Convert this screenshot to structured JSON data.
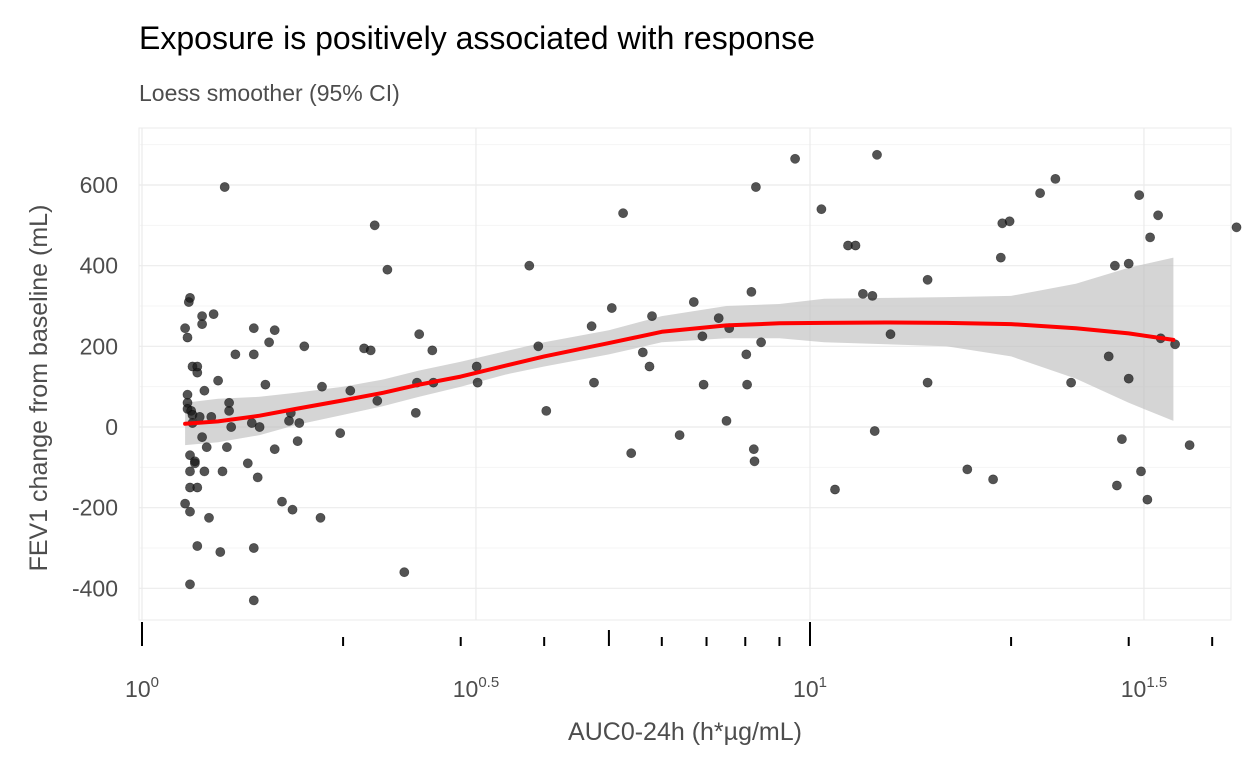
{
  "chart_data": {
    "type": "scatter",
    "title": "Exposure is positively associated with response",
    "subtitle": "Loess smoother (95% CI)",
    "xlabel": "AUC0-24h (h*µg/mL)",
    "ylabel": "FEV1 change from baseline (mL)",
    "x_scale": "log10",
    "xlim": [
      1.0,
      40.0
    ],
    "ylim": [
      -500,
      700
    ],
    "x_ticks": [
      {
        "base": "10",
        "exp": "0",
        "value": 1.0
      },
      {
        "base": "10",
        "exp": "0.5",
        "value": 3.162
      },
      {
        "base": "10",
        "exp": "1",
        "value": 10.0
      },
      {
        "base": "10",
        "exp": "1.5",
        "value": 31.62
      }
    ],
    "y_ticks": [
      -400,
      -200,
      0,
      200,
      400,
      600
    ],
    "grid": true,
    "colors": {
      "points": "#1a1a1a",
      "smoother": "#ff0000",
      "ribbon": "#bebebe",
      "grid": "#ebebeb",
      "text": "#4d4d4d"
    },
    "smoother": {
      "x": [
        1.16,
        1.3,
        1.5,
        1.7,
        2.0,
        2.3,
        2.6,
        3.0,
        3.5,
        4.0,
        5.0,
        6.0,
        7.5,
        9.0,
        10.5,
        13.0,
        16.0,
        20.0,
        25.0,
        30.0,
        35.0
      ],
      "y": [
        8,
        14,
        28,
        45,
        66,
        85,
        105,
        125,
        152,
        175,
        208,
        236,
        252,
        257,
        258,
        259,
        258,
        255,
        245,
        232,
        216
      ],
      "lower": [
        -45,
        -38,
        -20,
        5,
        30,
        52,
        75,
        100,
        130,
        150,
        180,
        210,
        220,
        220,
        210,
        205,
        200,
        175,
        120,
        60,
        15
      ],
      "upper": [
        60,
        70,
        75,
        85,
        100,
        118,
        140,
        162,
        188,
        210,
        240,
        275,
        300,
        305,
        318,
        320,
        322,
        325,
        355,
        395,
        420
      ]
    },
    "points": [
      [
        1.16,
        -190
      ],
      [
        1.16,
        245
      ],
      [
        1.17,
        222
      ],
      [
        1.17,
        60
      ],
      [
        1.17,
        80
      ],
      [
        1.17,
        45
      ],
      [
        1.175,
        310
      ],
      [
        1.18,
        320
      ],
      [
        1.18,
        -70
      ],
      [
        1.18,
        -110
      ],
      [
        1.18,
        -150
      ],
      [
        1.18,
        -210
      ],
      [
        1.18,
        -390
      ],
      [
        1.185,
        40
      ],
      [
        1.19,
        30
      ],
      [
        1.19,
        10
      ],
      [
        1.19,
        150
      ],
      [
        1.2,
        -85
      ],
      [
        1.2,
        -90
      ],
      [
        1.21,
        -295
      ],
      [
        1.21,
        135
      ],
      [
        1.21,
        150
      ],
      [
        1.21,
        -150
      ],
      [
        1.22,
        25
      ],
      [
        1.23,
        -25
      ],
      [
        1.23,
        275
      ],
      [
        1.23,
        255
      ],
      [
        1.24,
        -110
      ],
      [
        1.24,
        90
      ],
      [
        1.25,
        -50
      ],
      [
        1.26,
        -225
      ],
      [
        1.27,
        25
      ],
      [
        1.28,
        280
      ],
      [
        1.3,
        115
      ],
      [
        1.31,
        -310
      ],
      [
        1.32,
        -110
      ],
      [
        1.33,
        595
      ],
      [
        1.34,
        -50
      ],
      [
        1.35,
        40
      ],
      [
        1.35,
        60
      ],
      [
        1.36,
        0
      ],
      [
        1.38,
        180
      ],
      [
        1.44,
        -90
      ],
      [
        1.46,
        10
      ],
      [
        1.47,
        245
      ],
      [
        1.47,
        180
      ],
      [
        1.47,
        -300
      ],
      [
        1.47,
        -430
      ],
      [
        1.49,
        -125
      ],
      [
        1.5,
        0
      ],
      [
        1.53,
        105
      ],
      [
        1.55,
        210
      ],
      [
        1.58,
        -55
      ],
      [
        1.58,
        240
      ],
      [
        1.62,
        -185
      ],
      [
        1.66,
        15
      ],
      [
        1.67,
        35
      ],
      [
        1.68,
        -205
      ],
      [
        1.71,
        -35
      ],
      [
        1.72,
        10
      ],
      [
        1.75,
        200
      ],
      [
        1.85,
        -225
      ],
      [
        1.86,
        100
      ],
      [
        1.98,
        -15
      ],
      [
        2.05,
        90
      ],
      [
        2.15,
        195
      ],
      [
        2.2,
        190
      ],
      [
        2.23,
        500
      ],
      [
        2.25,
        65
      ],
      [
        2.33,
        390
      ],
      [
        2.47,
        -360
      ],
      [
        2.57,
        35
      ],
      [
        2.58,
        110
      ],
      [
        2.6,
        230
      ],
      [
        2.72,
        190
      ],
      [
        2.73,
        110
      ],
      [
        3.17,
        150
      ],
      [
        3.18,
        110
      ],
      [
        3.8,
        400
      ],
      [
        3.92,
        200
      ],
      [
        4.03,
        40
      ],
      [
        4.71,
        250
      ],
      [
        4.75,
        110
      ],
      [
        5.05,
        295
      ],
      [
        5.25,
        530
      ],
      [
        5.4,
        -65
      ],
      [
        5.62,
        185
      ],
      [
        5.75,
        150
      ],
      [
        5.8,
        275
      ],
      [
        6.38,
        -20
      ],
      [
        6.7,
        310
      ],
      [
        6.9,
        225
      ],
      [
        6.93,
        105
      ],
      [
        7.3,
        270
      ],
      [
        7.5,
        15
      ],
      [
        7.57,
        245
      ],
      [
        8.03,
        180
      ],
      [
        8.05,
        105
      ],
      [
        8.17,
        335
      ],
      [
        8.24,
        -55
      ],
      [
        8.26,
        -85
      ],
      [
        8.3,
        595
      ],
      [
        8.45,
        210
      ],
      [
        9.5,
        665
      ],
      [
        10.4,
        540
      ],
      [
        10.9,
        -155
      ],
      [
        11.4,
        450
      ],
      [
        11.7,
        450
      ],
      [
        12.0,
        330
      ],
      [
        12.4,
        325
      ],
      [
        12.5,
        -10
      ],
      [
        12.6,
        675
      ],
      [
        13.2,
        230
      ],
      [
        15.0,
        365
      ],
      [
        15.0,
        110
      ],
      [
        17.2,
        -105
      ],
      [
        18.8,
        -130
      ],
      [
        19.3,
        420
      ],
      [
        19.4,
        505
      ],
      [
        19.9,
        510
      ],
      [
        22.1,
        580
      ],
      [
        23.3,
        615
      ],
      [
        24.6,
        110
      ],
      [
        28.0,
        175
      ],
      [
        28.6,
        400
      ],
      [
        28.8,
        -145
      ],
      [
        29.3,
        -30
      ],
      [
        30.0,
        405
      ],
      [
        30.0,
        120
      ],
      [
        31.1,
        575
      ],
      [
        31.3,
        -110
      ],
      [
        32.0,
        -180
      ],
      [
        32.3,
        470
      ],
      [
        33.2,
        525
      ],
      [
        33.5,
        220
      ],
      [
        35.2,
        205
      ],
      [
        37.0,
        -45
      ],
      [
        43.5,
        495
      ]
    ]
  }
}
